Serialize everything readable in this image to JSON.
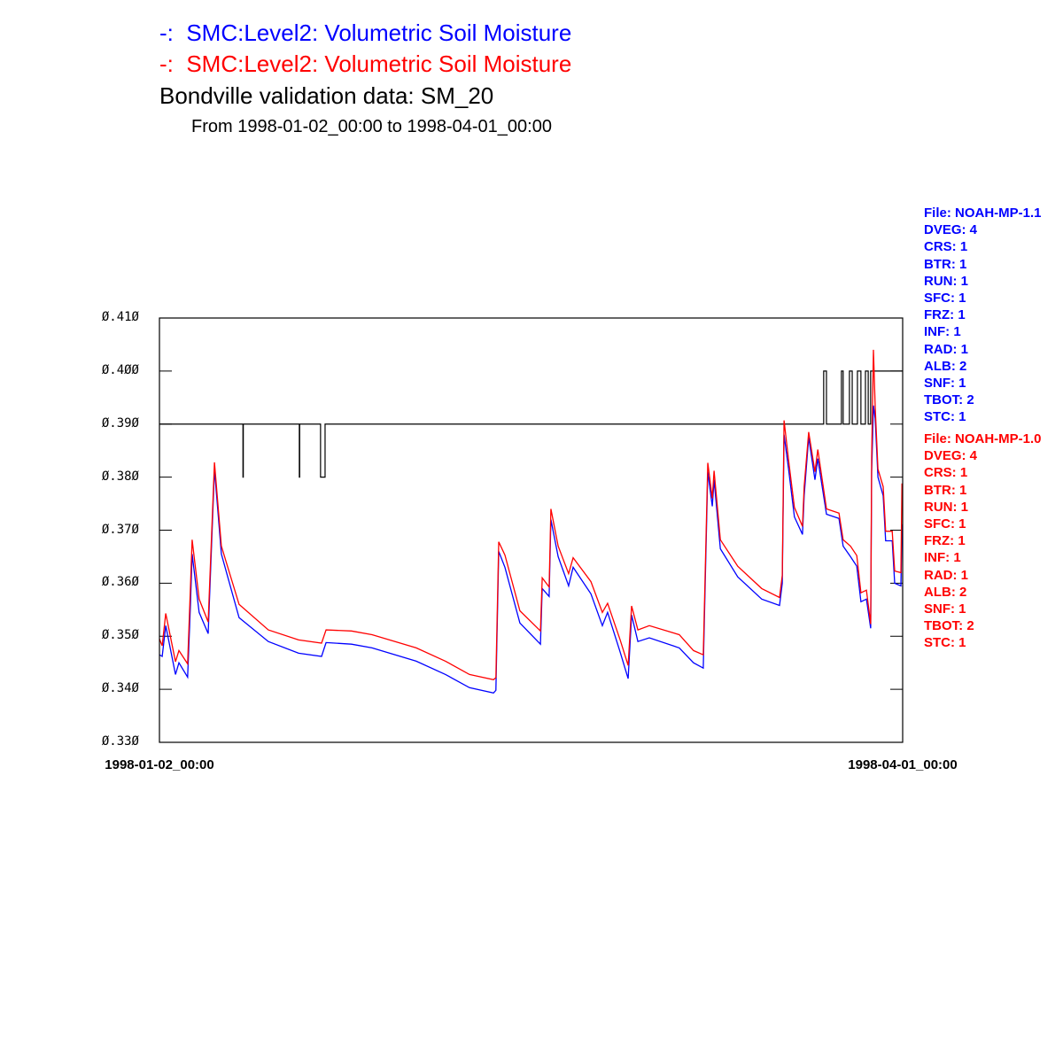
{
  "header": {
    "line1_prefix": "-:",
    "line1": "SMC:Level2: Volumetric Soil Moisture",
    "line2_prefix": "-:",
    "line2": "SMC:Level2: Volumetric Soil Moisture",
    "title": "Bondville validation data:  SM_20",
    "subtitle": "From 1998-01-02_00:00 to 1998-04-01_00:00"
  },
  "legend_blue": [
    "File: NOAH-MP-1.1",
    "DVEG: 4",
    "CRS: 1",
    "BTR: 1",
    "RUN: 1",
    "SFC: 1",
    "FRZ: 1",
    "INF: 1",
    "RAD: 1",
    "ALB: 2",
    "SNF: 1",
    "TBOT: 2",
    "STC: 1"
  ],
  "legend_red": [
    "File: NOAH-MP-1.0",
    "DVEG: 4",
    "CRS: 1",
    "BTR: 1",
    "RUN: 1",
    "SFC: 1",
    "FRZ: 1",
    "INF: 1",
    "RAD: 1",
    "ALB: 2",
    "SNF: 1",
    "TBOT: 2",
    "STC: 1"
  ],
  "colors": {
    "series_blue": "#0000ff",
    "series_red": "#ff0000",
    "validation": "#000000",
    "axes": "#000000"
  },
  "chart_data": {
    "type": "line",
    "title": "Bondville validation data:  SM_20",
    "xlabel": "",
    "ylabel": "",
    "xlim": [
      "1998-01-02_00:00",
      "1998-04-01_00:00"
    ],
    "ylim": [
      0.33,
      0.41
    ],
    "yticks": [
      "0.330",
      "0.340",
      "0.350",
      "0.360",
      "0.370",
      "0.380",
      "0.390",
      "0.400",
      "0.410"
    ],
    "xticks": [
      "1998-01-02_00:00",
      "1998-04-01_00:00"
    ],
    "grid": false,
    "x": [
      "1998-01-02_00:00",
      "1998-01-02_08:00",
      "1998-01-02_18:00",
      "1998-01-03_22:00",
      "1998-01-04_08:00",
      "1998-01-05_09:00",
      "1998-01-05_17:00",
      "1998-01-05_22:00",
      "1998-01-06_18:00",
      "1998-01-07_20:00",
      "1998-01-08_14:00",
      "1998-01-09_10:00",
      "1998-01-11_13:00",
      "1998-01-15_01:00",
      "1998-01-18_16:00",
      "1998-01-21_10:00",
      "1998-01-21_23:00",
      "1998-01-25_00:00",
      "1998-01-27_11:00",
      "1998-02-01_18:00",
      "1998-02-05_06:00",
      "1998-02-08_03:00",
      "1998-02-11_00:00",
      "1998-02-11_07:00",
      "1998-02-11_15:00",
      "1998-02-12_09:00",
      "1998-02-14_04:00",
      "1998-02-16_15:00",
      "1998-02-16_20:00",
      "1998-02-17_16:00",
      "1998-02-17_21:00",
      "1998-02-18_18:00",
      "1998-02-20_00:00",
      "1998-02-20_13:00",
      "1998-02-22_16:00",
      "1998-02-24_01:00",
      "1998-02-24_16:00",
      "1998-02-26_04:00",
      "1998-02-27_03:00",
      "1998-02-27_13:00",
      "1998-02-28_07:00",
      "1998-03-01_16:00",
      "1998-03-05_06:00",
      "1998-03-06_23:00",
      "1998-03-08_03:00",
      "1998-03-08_16:00",
      "1998-03-09_05:00",
      "1998-03-09_10:00",
      "1998-03-10_04:00",
      "1998-03-12_06:00",
      "1998-03-15_03:00",
      "1998-03-17_06:00",
      "1998-03-17_14:00",
      "1998-03-17_19:00",
      "1998-03-18_08:00",
      "1998-03-19_01:00",
      "1998-03-20_00:00",
      "1998-03-20_05:00",
      "1998-03-20_18:00",
      "1998-03-21_12:00",
      "1998-03-21_20:00",
      "1998-03-22_21:00",
      "1998-03-24_09:00",
      "1998-03-24_21:00",
      "1998-03-25_18:00",
      "1998-03-26_12:00",
      "1998-03-27_00:00",
      "1998-03-27_16:00",
      "1998-03-28_04:00",
      "1998-03-28_07:00",
      "1998-03-28_12:00",
      "1998-03-28_17:00",
      "1998-03-29_01:00",
      "1998-03-29_16:00",
      "1998-03-29_23:00",
      "1998-03-30_18:00",
      "1998-03-31_01:00",
      "1998-03-31_19:00",
      "1998-03-31_22:00",
      "1998-04-01_00:00"
    ],
    "series": [
      {
        "name": "SMC:Level2: Volumetric Soil Moisture (NOAH-MP-1.1)",
        "color": "#0000ff",
        "values": [
          0.3465,
          0.3462,
          0.352,
          0.3428,
          0.345,
          0.3423,
          0.356,
          0.3655,
          0.3545,
          0.3505,
          0.3815,
          0.3655,
          0.3535,
          0.349,
          0.3468,
          0.3462,
          0.3488,
          0.3485,
          0.3478,
          0.3453,
          0.3428,
          0.3403,
          0.3393,
          0.3398,
          0.366,
          0.363,
          0.3525,
          0.3485,
          0.359,
          0.3575,
          0.372,
          0.365,
          0.3595,
          0.363,
          0.358,
          0.352,
          0.3545,
          0.347,
          0.342,
          0.354,
          0.349,
          0.3497,
          0.3478,
          0.345,
          0.344,
          0.381,
          0.3745,
          0.3795,
          0.3665,
          0.3612,
          0.357,
          0.3558,
          0.36,
          0.388,
          0.3815,
          0.3725,
          0.3692,
          0.3765,
          0.3875,
          0.3795,
          0.3835,
          0.373,
          0.3722,
          0.367,
          0.365,
          0.3632,
          0.3565,
          0.357,
          0.3515,
          0.381,
          0.3935,
          0.391,
          0.38,
          0.3765,
          0.368,
          0.368,
          0.36,
          0.3595,
          0.371,
          0.371
        ]
      },
      {
        "name": "SMC:Level2: Volumetric Soil Moisture (NOAH-MP-1.0)",
        "color": "#ff0000",
        "values": [
          0.3495,
          0.3482,
          0.3543,
          0.3452,
          0.3473,
          0.3448,
          0.3593,
          0.3682,
          0.357,
          0.3527,
          0.3828,
          0.367,
          0.356,
          0.3512,
          0.3493,
          0.3487,
          0.3512,
          0.351,
          0.3503,
          0.3478,
          0.3453,
          0.3428,
          0.3418,
          0.3422,
          0.3678,
          0.3653,
          0.3548,
          0.351,
          0.361,
          0.3593,
          0.374,
          0.367,
          0.3618,
          0.3648,
          0.3603,
          0.3545,
          0.3562,
          0.3493,
          0.3445,
          0.3557,
          0.3512,
          0.352,
          0.3503,
          0.3473,
          0.3465,
          0.3827,
          0.376,
          0.3812,
          0.3682,
          0.3632,
          0.359,
          0.3573,
          0.3615,
          0.3907,
          0.3832,
          0.3743,
          0.3707,
          0.3782,
          0.3885,
          0.381,
          0.3852,
          0.374,
          0.3732,
          0.3682,
          0.367,
          0.3652,
          0.3582,
          0.3587,
          0.3523,
          0.3837,
          0.404,
          0.3932,
          0.3815,
          0.3782,
          0.3698,
          0.3698,
          0.3623,
          0.362,
          0.3787,
          0.3787
        ]
      }
    ],
    "validation_step": [
      [
        "1998-01-02_00:00",
        0.39
      ],
      [
        "1998-01-12_00:00",
        0.38
      ],
      [
        "1998-01-12_01:00",
        0.39
      ],
      [
        "1998-01-18_18:00",
        0.38
      ],
      [
        "1998-01-18_19:00",
        0.39
      ],
      [
        "1998-01-21_07:00",
        0.38
      ],
      [
        "1998-01-21_20:00",
        0.39
      ],
      [
        "1998-03-22_13:00",
        0.4
      ],
      [
        "1998-03-22_21:00",
        0.39
      ],
      [
        "1998-03-24_16:00",
        0.4
      ],
      [
        "1998-03-24_21:00",
        0.39
      ],
      [
        "1998-03-25_15:00",
        0.4
      ],
      [
        "1998-03-25_23:00",
        0.39
      ],
      [
        "1998-03-26_14:00",
        0.4
      ],
      [
        "1998-03-27_00:00",
        0.39
      ],
      [
        "1998-03-27_13:00",
        0.4
      ],
      [
        "1998-03-27_21:00",
        0.39
      ],
      [
        "1998-03-28_04:00",
        0.4
      ],
      [
        "1998-04-01_00:00",
        0.4
      ]
    ]
  }
}
